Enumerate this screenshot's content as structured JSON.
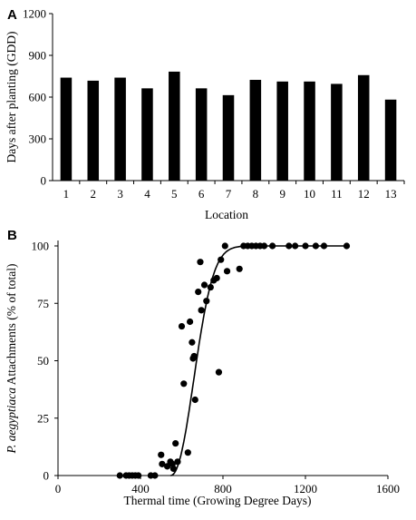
{
  "chart_data": [
    {
      "panel_label": "A",
      "type": "bar",
      "categories": [
        "1",
        "2",
        "3",
        "4",
        "5",
        "6",
        "7",
        "8",
        "9",
        "10",
        "11",
        "12",
        "13"
      ],
      "values": [
        740,
        718,
        740,
        663,
        783,
        663,
        614,
        724,
        712,
        712,
        695,
        758,
        582
      ],
      "xlabel": "Location",
      "ylabel": "Days after planting  (GDD)",
      "ylim": [
        0,
        1200
      ],
      "yticks": [
        "0",
        "300",
        "600",
        "900",
        "1200"
      ],
      "bar_color": "#000000",
      "grid": false
    },
    {
      "panel_label": "B",
      "type": "scatter",
      "xlabel": "Thermal time  (Growing Degree Days)",
      "ylabel_italic": "P. aegyptiaca",
      "ylabel_rest": " Attachments  (% of total)",
      "xlim": [
        0,
        1600
      ],
      "ylim": [
        0,
        100
      ],
      "xticks": [
        "0",
        "400",
        "800",
        "1200",
        "1600"
      ],
      "yticks": [
        "0",
        "25",
        "50",
        "75",
        "100"
      ],
      "points": [
        [
          300,
          0
        ],
        [
          330,
          0
        ],
        [
          345,
          0
        ],
        [
          360,
          0
        ],
        [
          375,
          0
        ],
        [
          390,
          0
        ],
        [
          450,
          0
        ],
        [
          470,
          0
        ],
        [
          500,
          9
        ],
        [
          505,
          5
        ],
        [
          530,
          4
        ],
        [
          545,
          6
        ],
        [
          555,
          5
        ],
        [
          560,
          3
        ],
        [
          570,
          14
        ],
        [
          580,
          6
        ],
        [
          600,
          65
        ],
        [
          610,
          40
        ],
        [
          630,
          10
        ],
        [
          640,
          67
        ],
        [
          650,
          58
        ],
        [
          655,
          51
        ],
        [
          660,
          52
        ],
        [
          665,
          33
        ],
        [
          680,
          80
        ],
        [
          690,
          93
        ],
        [
          695,
          72
        ],
        [
          710,
          83
        ],
        [
          720,
          76
        ],
        [
          740,
          82
        ],
        [
          755,
          85
        ],
        [
          770,
          86
        ],
        [
          780,
          45
        ],
        [
          790,
          94
        ],
        [
          810,
          100
        ],
        [
          820,
          89
        ],
        [
          880,
          90
        ],
        [
          900,
          100
        ],
        [
          920,
          100
        ],
        [
          940,
          100
        ],
        [
          960,
          100
        ],
        [
          980,
          100
        ],
        [
          1000,
          100
        ],
        [
          1040,
          100
        ],
        [
          1120,
          100
        ],
        [
          1150,
          100
        ],
        [
          1200,
          100
        ],
        [
          1250,
          100
        ],
        [
          1290,
          100
        ],
        [
          1400,
          100
        ]
      ],
      "fit_curve": "sigmoid",
      "marker_color": "#000000",
      "grid": false
    }
  ]
}
